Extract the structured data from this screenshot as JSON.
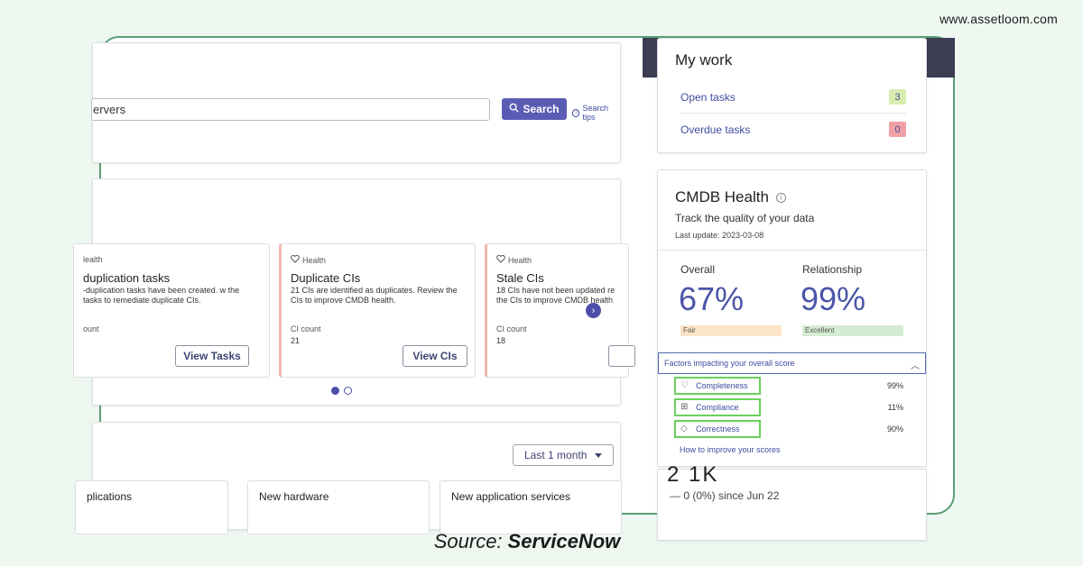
{
  "site": {
    "url": "www.assetloom.com"
  },
  "source": {
    "prefix": "Source:",
    "name": "ServiceNow"
  },
  "search": {
    "value": "ervers",
    "button_label": "Search",
    "tips_label": "Search tips"
  },
  "health_cards": [
    {
      "tag": "lealth",
      "title": "duplication tasks",
      "desc": "-duplication tasks have been created. w the tasks to remediate duplicate CIs.",
      "count_label": "ount",
      "count": "",
      "button": "View Tasks"
    },
    {
      "tag": "Health",
      "title": "Duplicate CIs",
      "desc": "21 CIs are identified as duplicates. Review the CIs to improve CMDB health.",
      "count_label": "CI count",
      "count": "21",
      "button": "View CIs"
    },
    {
      "tag": "Health",
      "title": "Stale CIs",
      "desc": "18 CIs have not been updated re the CIs to improve CMDB health",
      "count_label": "CI count",
      "count": "18",
      "button": ""
    }
  ],
  "trends": {
    "range_label": "Last 1 month",
    "tiles": [
      "plications",
      "New hardware",
      "New application services"
    ]
  },
  "my_work": {
    "title": "My work",
    "rows": [
      {
        "label": "Open tasks",
        "count": "3",
        "color": "#d8ecb0"
      },
      {
        "label": "Overdue tasks",
        "count": "0",
        "color": "#f0a0a4"
      }
    ]
  },
  "cmdb": {
    "title": "CMDB Health",
    "subtitle": "Track the quality of your data",
    "last_update": "Last update: 2023-03-08",
    "overall": {
      "label": "Overall",
      "value": "67%",
      "status": "Fair",
      "color": "#fbe4c8"
    },
    "relationship": {
      "label": "Relationship",
      "value": "99%",
      "status": "Excellent",
      "color": "#d4ecd2"
    },
    "factors_label": "Factors impacting your overall score",
    "factors": [
      {
        "name": "Completeness",
        "pct": "99%",
        "icon": "shield-heart-icon"
      },
      {
        "name": "Compliance",
        "pct": "11%",
        "icon": "grid-check-icon"
      },
      {
        "name": "Correctness",
        "pct": "90%",
        "icon": "diamond-icon"
      }
    ],
    "improve_link": "How to improve your scores"
  },
  "right_bottom": {
    "big_number": "2 1K",
    "since": "— 0 (0%) since Jun 22"
  }
}
